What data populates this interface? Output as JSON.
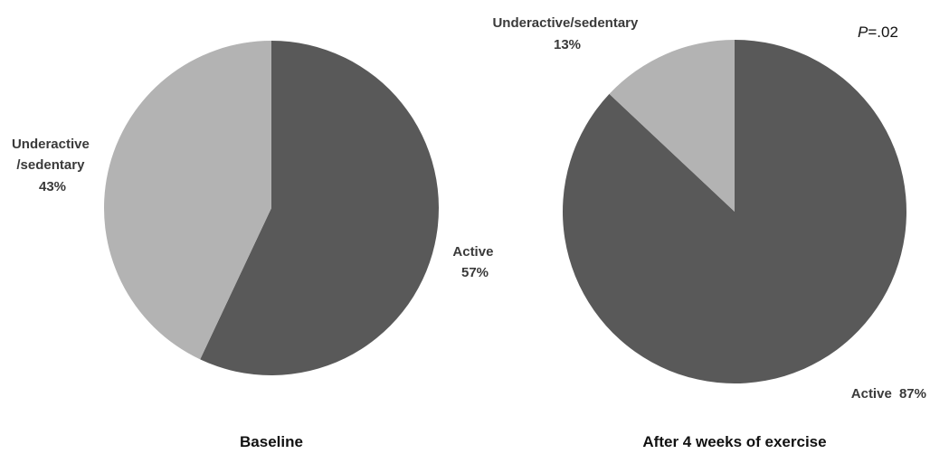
{
  "chart_data": [
    {
      "type": "pie",
      "title": "Baseline",
      "slices": [
        {
          "label": "Active",
          "value": 57,
          "value_text": "57%",
          "color": "#595959"
        },
        {
          "label": "Underactive /sedentary",
          "label_lines": [
            "Underactive",
            "/sedentary"
          ],
          "value": 43,
          "value_text": "43%",
          "color": "#b3b3b3"
        }
      ]
    },
    {
      "type": "pie",
      "title": "After 4 weeks of exercise",
      "slices": [
        {
          "label": "Active",
          "value": 87,
          "value_text": "87%",
          "color": "#595959"
        },
        {
          "label": "Underactive/sedentary",
          "label_lines": [
            "Underactive/sedentary"
          ],
          "value": 13,
          "value_text": "13%",
          "color": "#b3b3b3"
        }
      ]
    }
  ],
  "annotation": {
    "p_prefix": "P",
    "p_suffix": "=.02"
  }
}
